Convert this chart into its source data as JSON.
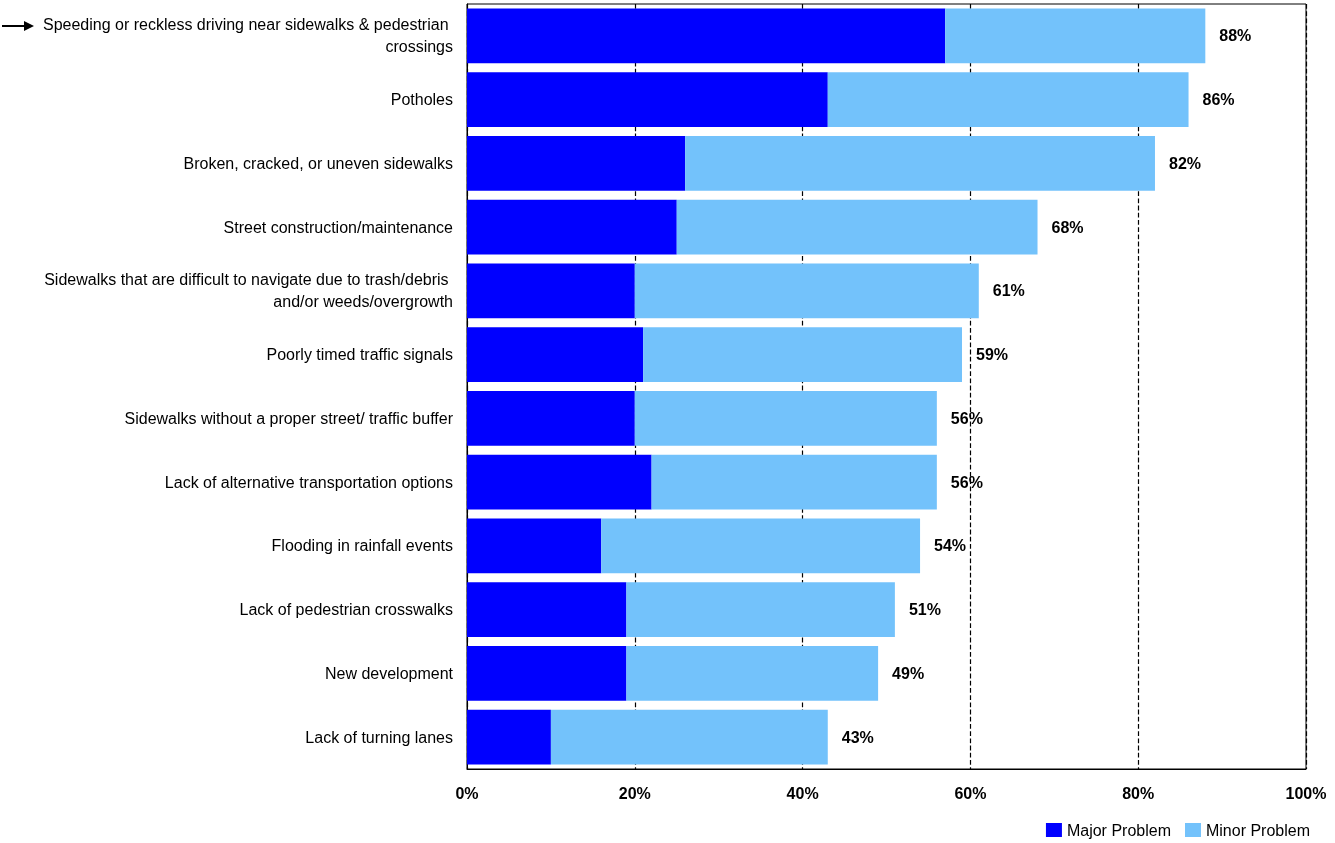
{
  "chart_data": {
    "type": "bar",
    "orientation": "horizontal",
    "stacked": true,
    "categories": [
      "Speeding or reckless driving near sidewalks & pedestrian crossings",
      "Potholes",
      "Broken, cracked, or uneven sidewalks",
      "Street construction/maintenance",
      "Sidewalks that are difficult to navigate due to trash/debris and/or weeds/overgrowth",
      "Poorly timed traffic signals",
      "Sidewalks without a proper street/ traffic buffer",
      "Lack of alternative transportation options",
      "Flooding in rainfall events",
      "Lack of pedestrian crosswalks",
      "New development",
      "Lack of turning lanes"
    ],
    "series": [
      {
        "name": "Major Problem",
        "color": "#0000ff",
        "values": [
          57,
          43,
          26,
          25,
          20,
          21,
          20,
          22,
          16,
          19,
          19,
          10
        ]
      },
      {
        "name": "Minor Problem",
        "color": "#73c2fb",
        "values": [
          31,
          43,
          56,
          43,
          41,
          38,
          36,
          34,
          38,
          32,
          30,
          33
        ]
      }
    ],
    "totals": [
      "88%",
      "86%",
      "82%",
      "68%",
      "61%",
      "59%",
      "56%",
      "56%",
      "54%",
      "51%",
      "49%",
      "43%"
    ],
    "xlim": [
      0,
      100
    ],
    "xticks": [
      {
        "value": 0,
        "label": "0%"
      },
      {
        "value": 20,
        "label": "20%"
      },
      {
        "value": 40,
        "label": "40%"
      },
      {
        "value": 60,
        "label": "60%"
      },
      {
        "value": 80,
        "label": "80%"
      },
      {
        "value": 100,
        "label": "100%"
      }
    ],
    "grid": "x",
    "legend": "bottom right"
  }
}
